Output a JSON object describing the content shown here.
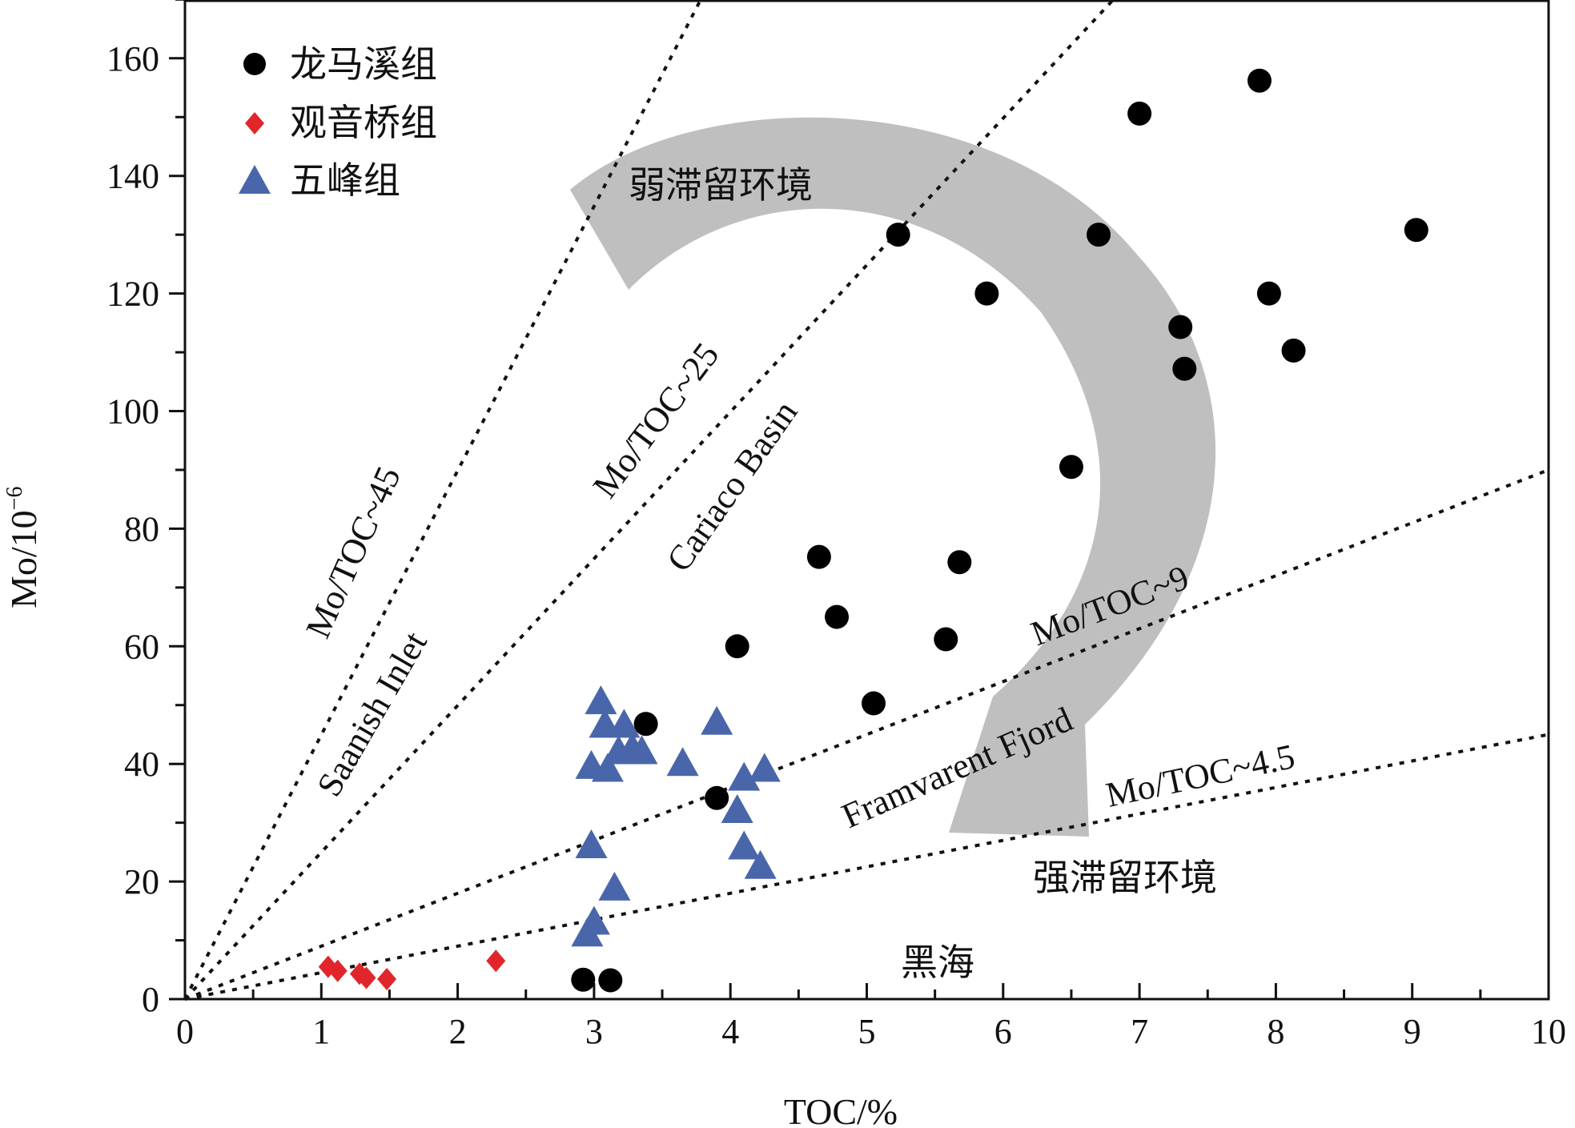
{
  "chart_data": {
    "type": "scatter",
    "title": "",
    "xlabel": "TOC/%",
    "ylabel": "Mo/10",
    "ylabel_sup": "−6",
    "xlim": [
      0,
      10
    ],
    "ylim": [
      0,
      170
    ],
    "x_ticks": [
      "0",
      "1",
      "2",
      "3",
      "4",
      "5",
      "6",
      "7",
      "8",
      "9",
      "10"
    ],
    "y_ticks": [
      "0",
      "20",
      "40",
      "60",
      "80",
      "100",
      "120",
      "140",
      "160"
    ],
    "grid": false,
    "legend_position": "top-left",
    "series": [
      {
        "name": "龙马溪组",
        "marker": "circle",
        "color": "#000000",
        "points": [
          [
            2.92,
            3.3
          ],
          [
            3.12,
            3.2
          ],
          [
            3.38,
            46.8
          ],
          [
            3.9,
            34.2
          ],
          [
            4.05,
            60.0
          ],
          [
            4.65,
            75.2
          ],
          [
            4.78,
            65.0
          ],
          [
            5.05,
            50.3
          ],
          [
            5.58,
            61.2
          ],
          [
            5.68,
            74.3
          ],
          [
            5.23,
            130.0
          ],
          [
            5.88,
            120.0
          ],
          [
            6.5,
            90.5
          ],
          [
            6.7,
            130.0
          ],
          [
            7.0,
            150.6
          ],
          [
            7.3,
            114.3
          ],
          [
            7.33,
            107.2
          ],
          [
            7.88,
            156.2
          ],
          [
            7.95,
            120.0
          ],
          [
            8.13,
            110.3
          ],
          [
            9.03,
            130.8
          ]
        ]
      },
      {
        "name": "观音桥组",
        "marker": "diamond",
        "color": "#e0262b",
        "points": [
          [
            1.05,
            5.5
          ],
          [
            1.12,
            4.8
          ],
          [
            1.28,
            4.3
          ],
          [
            1.33,
            3.6
          ],
          [
            1.48,
            3.4
          ],
          [
            2.28,
            6.5
          ]
        ]
      },
      {
        "name": "五峰组",
        "marker": "triangle",
        "color": "#4a66aa",
        "points": [
          [
            3.05,
            50.5
          ],
          [
            3.08,
            46.5
          ],
          [
            3.22,
            46.5
          ],
          [
            3.28,
            42.5
          ],
          [
            3.18,
            42.0
          ],
          [
            3.35,
            42.0
          ],
          [
            2.98,
            39.5
          ],
          [
            3.1,
            39.0
          ],
          [
            3.65,
            40.0
          ],
          [
            3.9,
            47.0
          ],
          [
            4.1,
            37.5
          ],
          [
            4.25,
            39.0
          ],
          [
            4.05,
            32.0
          ],
          [
            4.1,
            25.8
          ],
          [
            4.22,
            22.5
          ],
          [
            2.98,
            26.0
          ],
          [
            3.15,
            18.8
          ],
          [
            3.0,
            13.0
          ],
          [
            2.95,
            11.0
          ]
        ]
      }
    ],
    "reference_lines": [
      {
        "ratio": 45,
        "label": "Mo/TOC~45"
      },
      {
        "ratio": 25,
        "label": "Mo/TOC~25"
      },
      {
        "ratio": 9,
        "label": "Mo/TOC~9"
      },
      {
        "ratio": 4.5,
        "label": "Mo/TOC~4.5"
      }
    ],
    "annotations": {
      "saanish": "Saanish Inlet",
      "cariaco": "Cariaco Basin",
      "framvarent": "Framvarent Fjord",
      "black_sea": "黑海",
      "weak": "弱滞留环境",
      "strong": "强滞留环境"
    },
    "arrow_color": "#bfbfbf"
  }
}
